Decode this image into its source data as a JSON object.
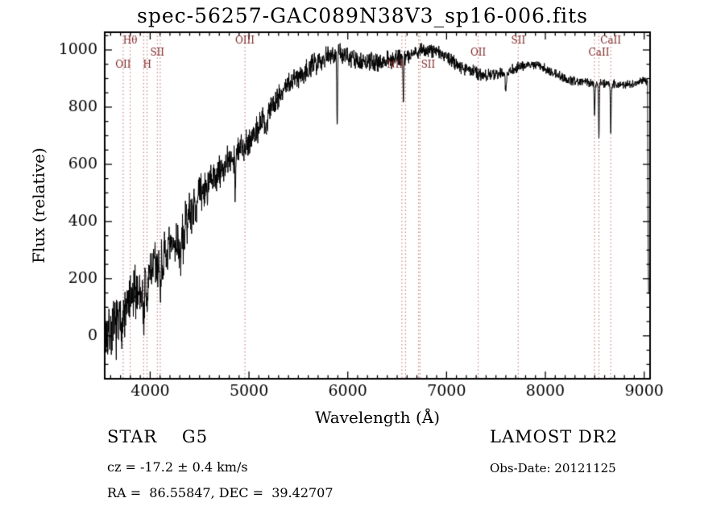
{
  "chart_data": {
    "type": "line",
    "title": "spec-56257-GAC089N38V3_sp16-006.fits",
    "xlabel": "Wavelength (Å)",
    "ylabel": "Flux (relative)",
    "xlim": [
      3540,
      9060
    ],
    "ylim": [
      -150,
      1062
    ],
    "x_ticks": [
      4000,
      5000,
      6000,
      7000,
      8000,
      9000
    ],
    "x_minor_step": 100,
    "y_ticks": [
      0,
      200,
      400,
      600,
      800,
      1000
    ],
    "y_minor_step": 50,
    "x_end": 9047,
    "sample_step": 2.5,
    "line_color": "#000000",
    "spectral_line_color": "#c06868",
    "spectral_label_color": "#7a1f1f",
    "spectral_lines": [
      {
        "label": "OII",
        "wavelength": 3727,
        "row": 2,
        "align": "center"
      },
      {
        "label": "Hθ",
        "wavelength": 3798,
        "row": 0,
        "align": "center"
      },
      {
        "label": "",
        "wavelength": 3934,
        "row": 0,
        "align": "center"
      },
      {
        "label": "H",
        "wavelength": 3969,
        "row": 2,
        "align": "center"
      },
      {
        "label": "SII",
        "wavelength": 4072,
        "row": 1,
        "align": "center"
      },
      {
        "label": "",
        "wavelength": 4102,
        "row": 0,
        "align": "center"
      },
      {
        "label": "OIII",
        "wavelength": 4959,
        "row": 0,
        "align": "center"
      },
      {
        "label": "",
        "wavelength": 6548,
        "row": 0,
        "align": "center"
      },
      {
        "label": "NII",
        "wavelength": 6584,
        "row": 2,
        "align": "right"
      },
      {
        "label": "SII",
        "wavelength": 6717,
        "row": 2,
        "align": "left"
      },
      {
        "label": "",
        "wavelength": 6731,
        "row": 0,
        "align": "center"
      },
      {
        "label": "OII",
        "wavelength": 7320,
        "row": 1,
        "align": "center"
      },
      {
        "label": "SII",
        "wavelength": 7725,
        "row": 0,
        "align": "center"
      },
      {
        "label": "",
        "wavelength": 8498,
        "row": 0,
        "align": "center"
      },
      {
        "label": "CaII",
        "wavelength": 8542,
        "row": 1,
        "align": "center"
      },
      {
        "label": "CaII",
        "wavelength": 8662,
        "row": 0,
        "align": "center"
      }
    ],
    "continuum": {
      "x": [
        3540,
        3600,
        3650,
        3700,
        3750,
        3800,
        3850,
        3900,
        3950,
        4000,
        4050,
        4100,
        4150,
        4200,
        4250,
        4300,
        4350,
        4400,
        4450,
        4500,
        4550,
        4600,
        4650,
        4700,
        4750,
        4800,
        4850,
        4900,
        4950,
        5000,
        5100,
        5200,
        5300,
        5400,
        5500,
        5600,
        5700,
        5800,
        5900,
        6000,
        6100,
        6200,
        6300,
        6400,
        6500,
        6600,
        6700,
        6800,
        6900,
        7000,
        7100,
        7200,
        7300,
        7400,
        7500,
        7600,
        7700,
        7800,
        7900,
        8000,
        8100,
        8200,
        8300,
        8400,
        8500,
        8600,
        8700,
        8800,
        8900,
        9000,
        9035,
        9040,
        9045
      ],
      "flux": [
        10,
        20,
        30,
        45,
        80,
        120,
        150,
        160,
        175,
        230,
        250,
        250,
        270,
        300,
        320,
        335,
        380,
        430,
        460,
        490,
        510,
        530,
        550,
        570,
        590,
        610,
        630,
        650,
        665,
        680,
        730,
        790,
        840,
        880,
        910,
        935,
        960,
        985,
        990,
        975,
        960,
        955,
        960,
        965,
        975,
        980,
        995,
        1000,
        995,
        975,
        950,
        935,
        920,
        910,
        915,
        925,
        935,
        945,
        950,
        935,
        915,
        900,
        890,
        888,
        885,
        882,
        880,
        878,
        882,
        895,
        888,
        300,
        150
      ]
    },
    "absorption_features": [
      {
        "center": 3934,
        "depth": 120,
        "sigma": 6
      },
      {
        "center": 3969,
        "depth": 110,
        "sigma": 6
      },
      {
        "center": 4102,
        "depth": 90,
        "sigma": 5
      },
      {
        "center": 4305,
        "depth": 80,
        "sigma": 8
      },
      {
        "center": 4340,
        "depth": 70,
        "sigma": 5
      },
      {
        "center": 4861,
        "depth": 110,
        "sigma": 5
      },
      {
        "center": 5175,
        "depth": 70,
        "sigma": 8
      },
      {
        "center": 5893,
        "depth": 260,
        "sigma": 4
      },
      {
        "center": 6563,
        "depth": 160,
        "sigma": 4
      },
      {
        "center": 7600,
        "depth": 60,
        "sigma": 8
      },
      {
        "center": 8498,
        "depth": 110,
        "sigma": 4
      },
      {
        "center": 8542,
        "depth": 190,
        "sigma": 4
      },
      {
        "center": 8662,
        "depth": 170,
        "sigma": 4
      }
    ],
    "noise": {
      "x": [
        3540,
        3700,
        3900,
        4100,
        4300,
        4600,
        5000,
        5400,
        5800,
        6200,
        6600,
        7000,
        7600,
        8200,
        9000,
        9060
      ],
      "amplitude": [
        75,
        75,
        70,
        65,
        58,
        50,
        38,
        32,
        28,
        25,
        22,
        18,
        15,
        12,
        10,
        10
      ],
      "seed": 7
    }
  },
  "footer": {
    "classification": "STAR    G5",
    "cz": "cz = -17.2 ± 0.4 km/s",
    "radec": "RA =  86.55847, DEC =  39.42707",
    "survey": "LAMOST DR2",
    "obs_date": "Obs-Date: 20121125"
  }
}
